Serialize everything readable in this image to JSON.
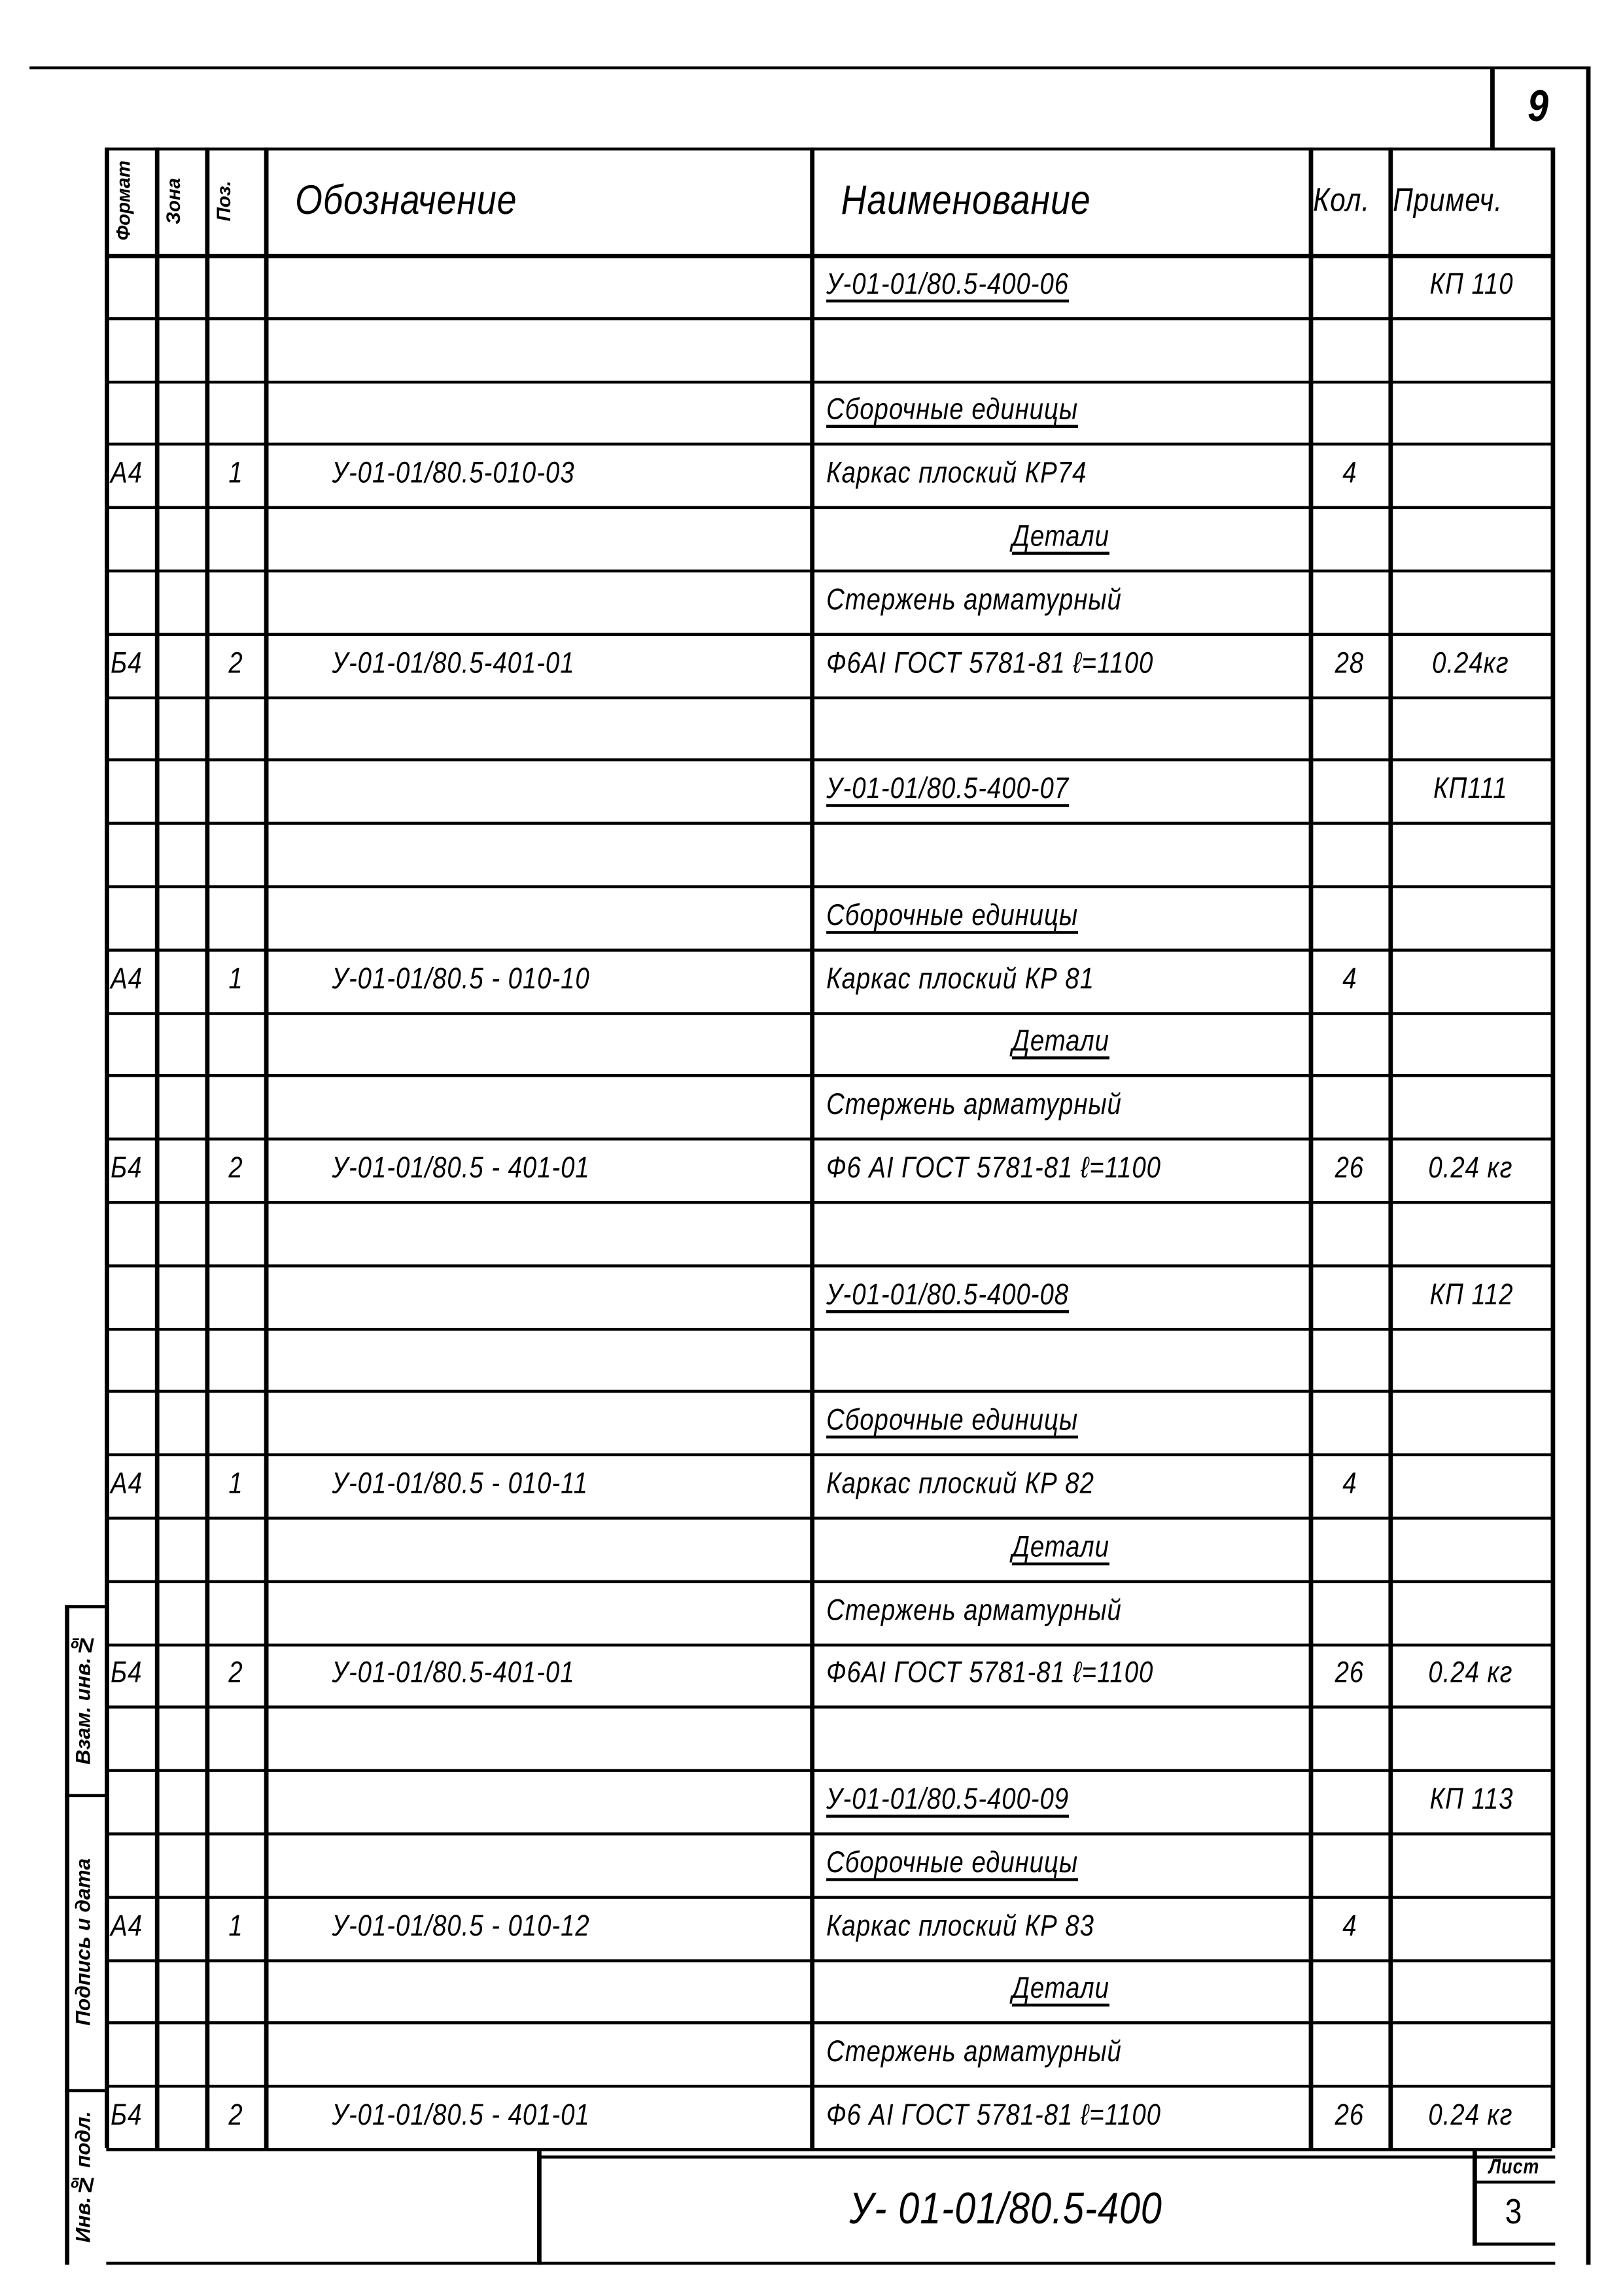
{
  "sheet_number": "9",
  "header": {
    "format": "Формат",
    "zone": "Зона",
    "pos": "Поз.",
    "designation": "Обозначение",
    "name": "Наименование",
    "qty": "Кол.",
    "note": "Примеч."
  },
  "rows": [
    {
      "format": "",
      "pos": "",
      "designation": "",
      "name": "У-01-01/80.5-400-06",
      "name_style": "ul",
      "qty": "",
      "note": "КП 110"
    },
    {
      "format": "",
      "pos": "",
      "designation": "",
      "name": "",
      "qty": "",
      "note": ""
    },
    {
      "format": "",
      "pos": "",
      "designation": "",
      "name": "Сборочные единицы",
      "name_style": "ul",
      "qty": "",
      "note": ""
    },
    {
      "format": "А4",
      "pos": "1",
      "designation": "У-01-01/80.5-010-03",
      "name": "Каркас плоский   КР74",
      "qty": "4",
      "note": ""
    },
    {
      "format": "",
      "pos": "",
      "designation": "",
      "name": "Детали",
      "name_style": "ul-center",
      "qty": "",
      "note": ""
    },
    {
      "format": "",
      "pos": "",
      "designation": "",
      "name": "Стержень арматурный",
      "qty": "",
      "note": ""
    },
    {
      "format": "Б4",
      "pos": "2",
      "designation": "У-01-01/80.5-401-01",
      "name": "Ф6АI ГОСТ 5781-81  ℓ=1100",
      "qty": "28",
      "note": "0.24кг"
    },
    {
      "format": "",
      "pos": "",
      "designation": "",
      "name": "",
      "qty": "",
      "note": ""
    },
    {
      "format": "",
      "pos": "",
      "designation": "",
      "name": "У-01-01/80.5-400-07",
      "name_style": "ul",
      "qty": "",
      "note": "КП111"
    },
    {
      "format": "",
      "pos": "",
      "designation": "",
      "name": "",
      "qty": "",
      "note": ""
    },
    {
      "format": "",
      "pos": "",
      "designation": "",
      "name": "Сборочные единицы",
      "name_style": "ul",
      "qty": "",
      "note": ""
    },
    {
      "format": "А4",
      "pos": "1",
      "designation": "У-01-01/80.5 - 010-10",
      "name": "Каркас плоский   КР 81",
      "qty": "4",
      "note": ""
    },
    {
      "format": "",
      "pos": "",
      "designation": "",
      "name": "Детали",
      "name_style": "ul-center",
      "qty": "",
      "note": ""
    },
    {
      "format": "",
      "pos": "",
      "designation": "",
      "name": "Стержень арматурный",
      "qty": "",
      "note": ""
    },
    {
      "format": "Б4",
      "pos": "2",
      "designation": "У-01-01/80.5 - 401-01",
      "name": "Ф6 АI ГОСТ 5781-81  ℓ=1100",
      "qty": "26",
      "note": "0.24 кг"
    },
    {
      "format": "",
      "pos": "",
      "designation": "",
      "name": "",
      "qty": "",
      "note": ""
    },
    {
      "format": "",
      "pos": "",
      "designation": "",
      "name": "У-01-01/80.5-400-08",
      "name_style": "ul",
      "qty": "",
      "note": "КП 112"
    },
    {
      "format": "",
      "pos": "",
      "designation": "",
      "name": "",
      "qty": "",
      "note": ""
    },
    {
      "format": "",
      "pos": "",
      "designation": "",
      "name": "Сборочные единицы",
      "name_style": "ul",
      "qty": "",
      "note": ""
    },
    {
      "format": "А4",
      "pos": "1",
      "designation": "У-01-01/80.5 - 010-11",
      "name": "Каркас плоский   КР 82",
      "qty": "4",
      "note": ""
    },
    {
      "format": "",
      "pos": "",
      "designation": "",
      "name": "Детали",
      "name_style": "ul-center",
      "qty": "",
      "note": ""
    },
    {
      "format": "",
      "pos": "",
      "designation": "",
      "name": "Стержень арматурный",
      "qty": "",
      "note": ""
    },
    {
      "format": "Б4",
      "pos": "2",
      "designation": "У-01-01/80.5-401-01",
      "name": "Ф6АI ГОСТ 5781-81  ℓ=1100",
      "qty": "26",
      "note": "0.24 кг"
    },
    {
      "format": "",
      "pos": "",
      "designation": "",
      "name": "",
      "qty": "",
      "note": ""
    },
    {
      "format": "",
      "pos": "",
      "designation": "",
      "name": "У-01-01/80.5-400-09",
      "name_style": "ul",
      "qty": "",
      "note": "КП 113"
    },
    {
      "format": "",
      "pos": "",
      "designation": "",
      "name": "Сборочные единицы",
      "name_style": "ul",
      "qty": "",
      "note": ""
    },
    {
      "format": "А4",
      "pos": "1",
      "designation": "У-01-01/80.5 - 010-12",
      "name": "Каркас плоский    КР 83",
      "qty": "4",
      "note": ""
    },
    {
      "format": "",
      "pos": "",
      "designation": "",
      "name": "Детали",
      "name_style": "ul-center",
      "qty": "",
      "note": ""
    },
    {
      "format": "",
      "pos": "",
      "designation": "",
      "name": "Стержень арматурный",
      "qty": "",
      "note": ""
    },
    {
      "format": "Б4",
      "pos": "2",
      "designation": "У-01-01/80.5 - 401-01",
      "name": "Ф6 АI ГОСТ 5781-81  ℓ=1100",
      "qty": "26",
      "note": "0.24 кг"
    }
  ],
  "title_block": {
    "document_code": "У- 01-01/80.5-400",
    "sheet_label": "Лист",
    "sheet_value": "3"
  },
  "side_stamp": {
    "inv_orig": "Инв.№ подл.",
    "signature_date": "Подпись и дата",
    "replaces_inv": "Взам. инв.№"
  }
}
